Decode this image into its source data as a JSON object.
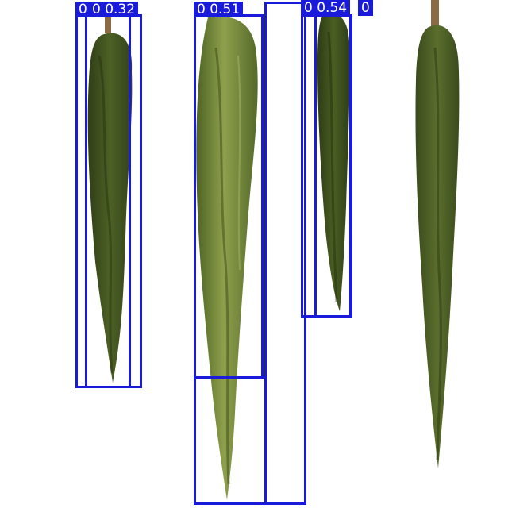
{
  "image": {
    "background": "#ffffff",
    "box_color": "#1a1adb",
    "label_text_color": "#ffffff",
    "foliage_dark": "#3b4a1e",
    "foliage_mid": "#56692b",
    "foliage_light": "#7d8f3f",
    "trunk_color": "#8a6b45"
  },
  "detections": {
    "labels": [
      {
        "text": "0"
      },
      {
        "text": "0 0.32"
      },
      {
        "text": "0 0.51"
      },
      {
        "text": "0 0.54"
      },
      {
        "text": "0"
      }
    ]
  }
}
